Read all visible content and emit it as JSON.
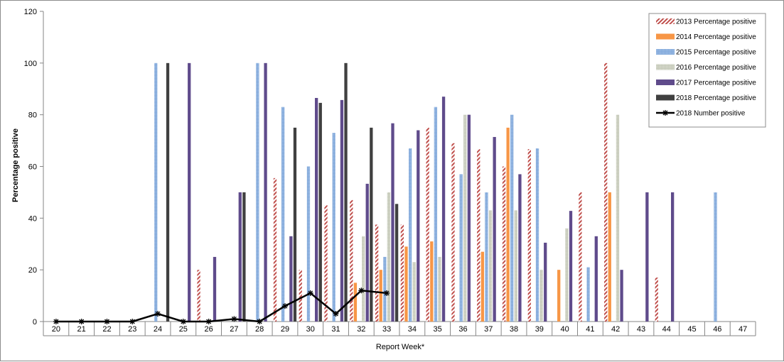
{
  "chart_data": {
    "type": "bar",
    "title": "",
    "xlabel": "Report Week*",
    "ylabel": "Percentage positive",
    "ylim": [
      0,
      120
    ],
    "yticks": [
      0,
      20,
      40,
      60,
      80,
      100,
      120
    ],
    "grid": false,
    "legend_position": "top-right",
    "categories": [
      "20",
      "21",
      "22",
      "23",
      "24",
      "25",
      "26",
      "27",
      "28",
      "29",
      "30",
      "31",
      "32",
      "33",
      "34",
      "35",
      "36",
      "37",
      "38",
      "39",
      "40",
      "41",
      "42",
      "43",
      "44",
      "45",
      "46",
      "47"
    ],
    "series": [
      {
        "name": "2013 Percentage positive",
        "type": "bar",
        "color": "#c0504d",
        "pattern": "hatched",
        "values": [
          null,
          null,
          null,
          null,
          null,
          null,
          20,
          null,
          null,
          55.5,
          20,
          45,
          47,
          37.5,
          37.5,
          75,
          69,
          66.7,
          60,
          66.7,
          null,
          50,
          100,
          null,
          17,
          null,
          null,
          null
        ]
      },
      {
        "name": "2014 Percentage positive",
        "type": "bar",
        "color": "#f79646",
        "pattern": "solid",
        "values": [
          null,
          null,
          null,
          null,
          null,
          null,
          null,
          null,
          null,
          null,
          null,
          null,
          15,
          20,
          29,
          31,
          null,
          27,
          75,
          null,
          20,
          null,
          50,
          null,
          null,
          null,
          null,
          null
        ]
      },
      {
        "name": "2015 Percentage positive",
        "type": "bar",
        "color": "#7fa7d9",
        "pattern": "dotted",
        "values": [
          null,
          null,
          null,
          null,
          100,
          null,
          null,
          null,
          100,
          83,
          60,
          73,
          null,
          25,
          67,
          83,
          57,
          50,
          80,
          67,
          null,
          21,
          null,
          null,
          null,
          null,
          50,
          null
        ]
      },
      {
        "name": "2016 Percentage positive",
        "type": "bar",
        "color": "#c4c8b8",
        "pattern": "dotted",
        "values": [
          null,
          null,
          null,
          null,
          null,
          null,
          null,
          null,
          null,
          null,
          null,
          null,
          33,
          50,
          23,
          25,
          80,
          43,
          43,
          20,
          36,
          null,
          80,
          null,
          null,
          null,
          null,
          null
        ]
      },
      {
        "name": "2017 Percentage positive",
        "type": "bar",
        "color": "#5f4b8b",
        "pattern": "solid",
        "values": [
          null,
          null,
          null,
          null,
          null,
          100,
          25,
          50,
          100,
          33,
          86.5,
          85.7,
          53.3,
          76.7,
          74,
          87,
          80,
          71.4,
          57,
          30.5,
          42.8,
          33,
          20,
          50,
          50,
          null,
          null,
          null
        ]
      },
      {
        "name": "2018 Percentage positive",
        "type": "bar",
        "color": "#404040",
        "pattern": "solid",
        "values": [
          null,
          null,
          null,
          null,
          100,
          null,
          null,
          50,
          null,
          75,
          84.6,
          100,
          75,
          45.5,
          null,
          null,
          null,
          null,
          null,
          null,
          null,
          null,
          null,
          null,
          null,
          null,
          null,
          null
        ]
      },
      {
        "name": "2018 Number positive",
        "type": "line",
        "color": "#000000",
        "marker": "asterisk",
        "values": [
          0,
          0,
          0,
          0,
          3,
          0,
          0,
          1,
          0,
          6,
          11,
          3,
          12,
          11,
          null,
          null,
          null,
          null,
          null,
          null,
          null,
          null,
          null,
          null,
          null,
          null,
          null,
          null
        ]
      }
    ]
  }
}
